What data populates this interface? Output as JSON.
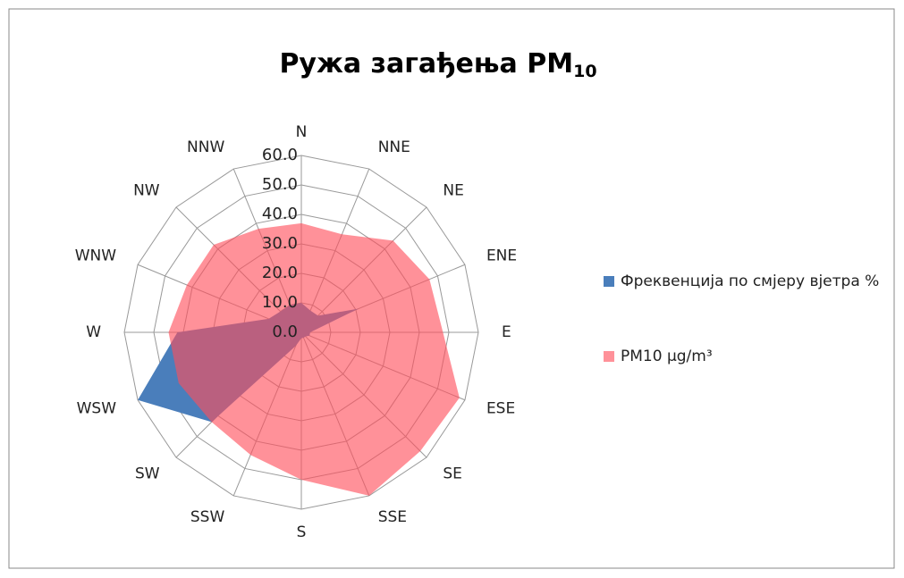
{
  "chart_data": {
    "type": "radar",
    "title": "Ружа загађења PM",
    "title_subscript": "10",
    "categories": [
      "N",
      "NNE",
      "NE",
      "ENE",
      "E",
      "ESE",
      "SE",
      "SSE",
      "S",
      "SSW",
      "SW",
      "WSW",
      "W",
      "WNW",
      "NW",
      "NNW"
    ],
    "series": [
      {
        "name": "Фреквенција по смјеру вјетра %",
        "color": "#4a7ebb",
        "values": [
          10,
          8,
          8,
          21,
          3,
          3,
          2,
          2,
          2,
          5,
          43,
          60,
          42,
          12,
          10,
          10
        ]
      },
      {
        "name": "PM10 µg/m³",
        "color": "#ff4d5a",
        "values": [
          37,
          36,
          44,
          47,
          48,
          58,
          57,
          60,
          50,
          45,
          43,
          45,
          45,
          42,
          42,
          38
        ]
      }
    ],
    "ylim": [
      0,
      60
    ],
    "yticks": [
      {
        "value": 0,
        "label": "0.0"
      },
      {
        "value": 10,
        "label": "10.0"
      },
      {
        "value": 20,
        "label": "20.0"
      },
      {
        "value": 30,
        "label": "30.0"
      },
      {
        "value": 40,
        "label": "40.0"
      },
      {
        "value": 50,
        "label": "50.0"
      },
      {
        "value": 60,
        "label": "60.0"
      }
    ],
    "grid": true,
    "legend": "right"
  }
}
